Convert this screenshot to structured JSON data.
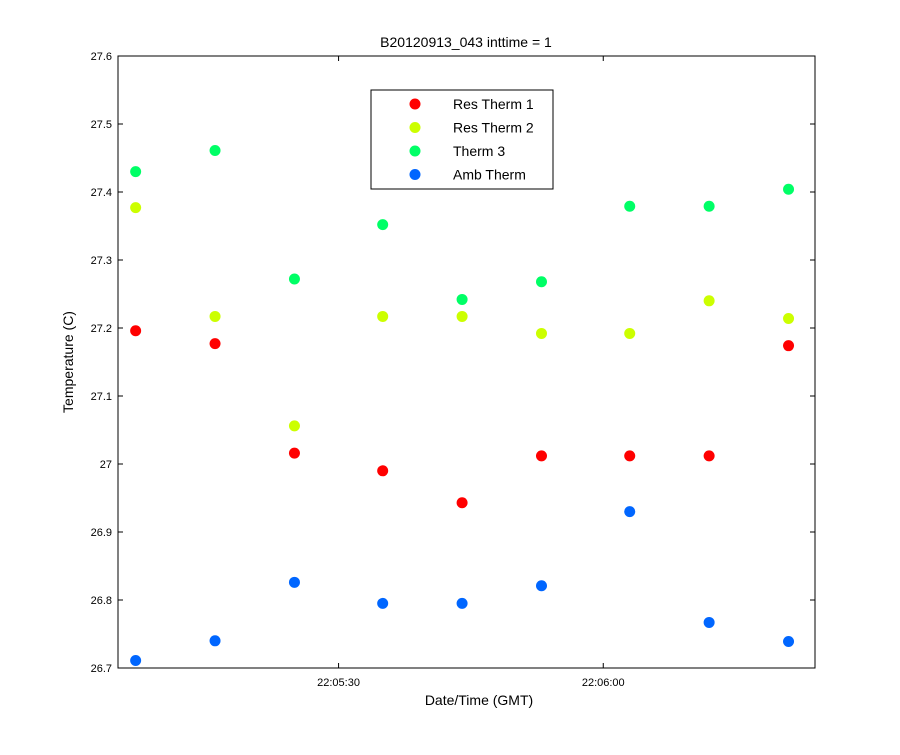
{
  "chart_data": {
    "type": "scatter",
    "title": "B20120913_043 inttime = 1",
    "xlabel": "Date/Time (GMT)",
    "ylabel": "Temperature (C)",
    "ylim": [
      26.7,
      27.6
    ],
    "yticks": [
      {
        "value": 26.7,
        "label": "26.7"
      },
      {
        "value": 26.8,
        "label": "26.8"
      },
      {
        "value": 26.9,
        "label": "26.9"
      },
      {
        "value": 27.0,
        "label": "27"
      },
      {
        "value": 27.1,
        "label": "27.1"
      },
      {
        "value": 27.2,
        "label": "27.2"
      },
      {
        "value": 27.3,
        "label": "27.3"
      },
      {
        "value": 27.4,
        "label": "27.4"
      },
      {
        "value": 27.5,
        "label": "27.5"
      },
      {
        "value": 27.6,
        "label": "27.6"
      }
    ],
    "xlim": [
      "22:05:05",
      "22:06:24"
    ],
    "xticks": [
      {
        "value": "22:05:30",
        "label": "22:05:30"
      },
      {
        "value": "22:06:00",
        "label": "22:06:00"
      }
    ],
    "x": [
      "22:05:07",
      "22:05:16",
      "22:05:25",
      "22:05:35",
      "22:05:44",
      "22:05:53",
      "22:06:03",
      "22:06:12",
      "22:06:21"
    ],
    "series": [
      {
        "name": "Res Therm 1",
        "color": "#ff0000",
        "values": [
          27.196,
          27.177,
          27.016,
          26.99,
          26.943,
          27.012,
          27.012,
          27.012,
          27.174
        ]
      },
      {
        "name": "Res Therm 2",
        "color": "#ccff00",
        "values": [
          27.377,
          27.217,
          27.056,
          27.217,
          27.217,
          27.192,
          27.192,
          27.24,
          27.214
        ]
      },
      {
        "name": "Therm 3",
        "color": "#00ff66",
        "values": [
          27.43,
          27.461,
          27.272,
          27.352,
          27.242,
          27.268,
          27.379,
          27.379,
          27.404
        ]
      },
      {
        "name": "Amb Therm",
        "color": "#0066ff",
        "values": [
          26.711,
          26.74,
          26.826,
          26.795,
          26.795,
          26.821,
          26.93,
          26.767,
          26.739
        ]
      }
    ],
    "legend_position": "top-center",
    "grid": false
  }
}
